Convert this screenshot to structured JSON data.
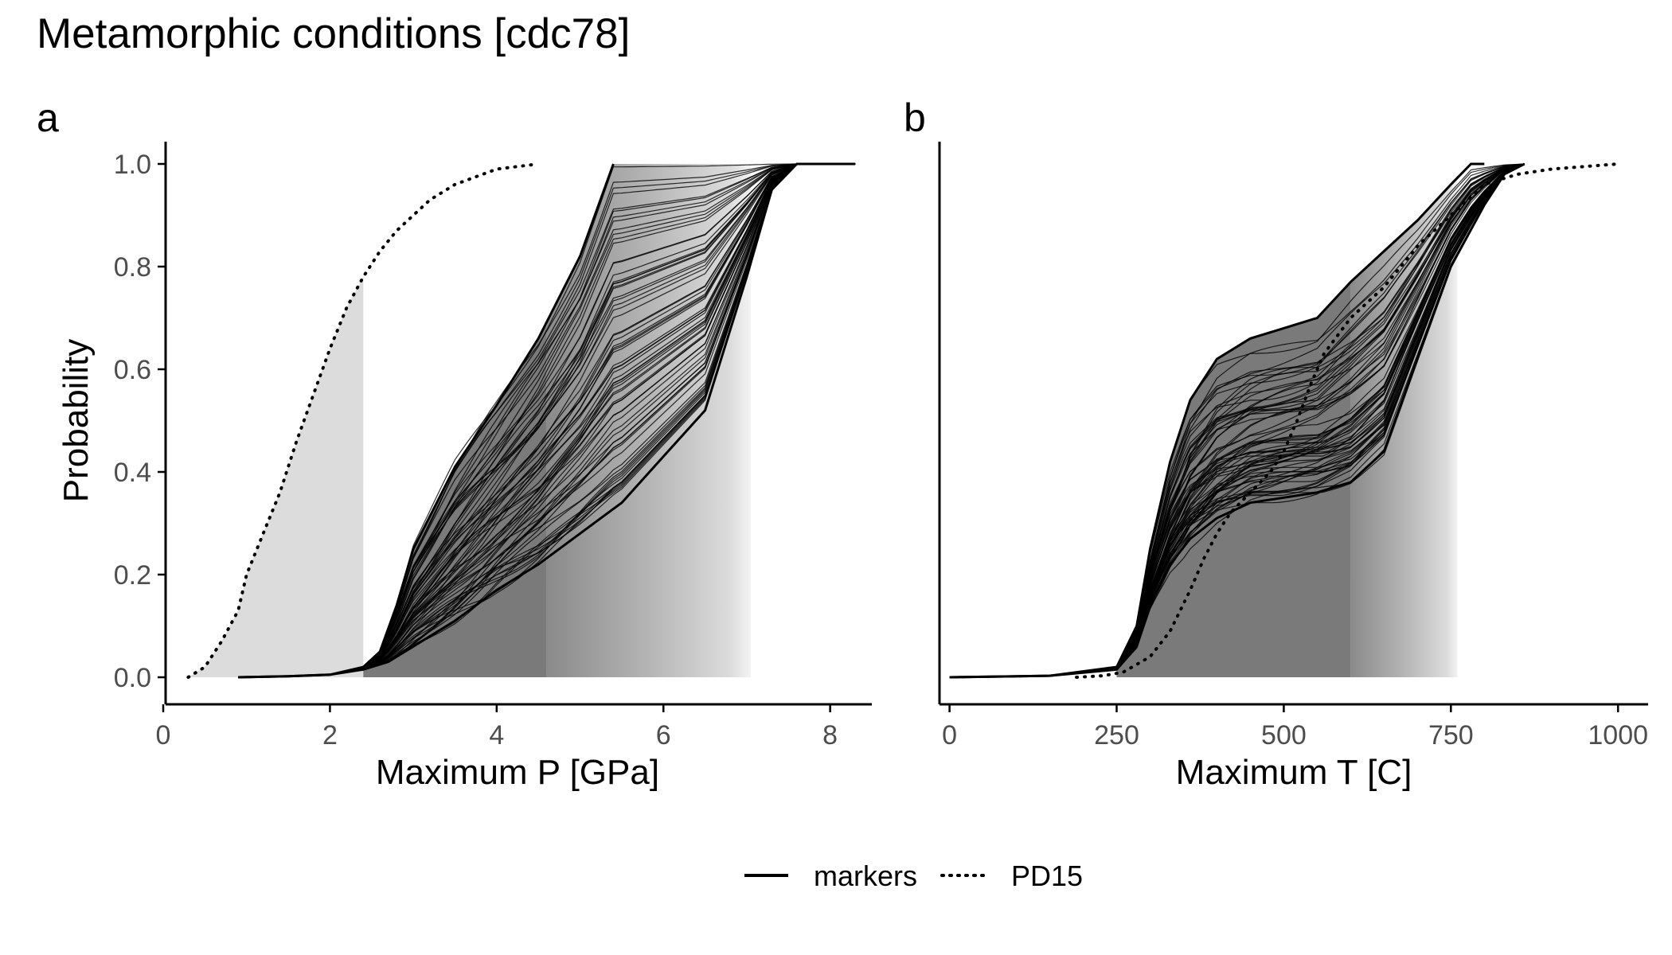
{
  "figure": {
    "title": "Metamorphic conditions [cdc78]"
  },
  "legend": {
    "position": "bottom",
    "entries": [
      {
        "label": "markers",
        "linetype": "solid"
      },
      {
        "label": "PD15",
        "linetype": "dotted"
      }
    ]
  },
  "colors": {
    "lines": "#000000",
    "shade_dark": "#7a7a7a",
    "shade_light": "#dcdcdc",
    "axis": "#000000",
    "tick_labels": "#4d4d4d"
  },
  "chart_data": [
    {
      "panel": "a",
      "type": "line",
      "title": "",
      "xlabel": "Maximum P [GPa]",
      "ylabel": "Probability",
      "xlim": [
        0,
        8.5
      ],
      "ylim": [
        0,
        1
      ],
      "xticks": [
        0,
        2,
        4,
        6,
        8
      ],
      "yticks": [
        0.0,
        0.2,
        0.4,
        0.6,
        0.8,
        1.0
      ],
      "ytick_labels": [
        "0.0",
        "0.2",
        "0.4",
        "0.6",
        "0.8",
        "1.0"
      ],
      "grid": false,
      "series": [
        {
          "name": "PD15",
          "linetype": "dotted",
          "x": [
            0.3,
            0.5,
            0.7,
            0.9,
            1.0,
            1.2,
            1.4,
            1.6,
            1.8,
            2.0,
            2.2,
            2.4,
            2.6,
            2.8,
            3.0,
            3.2,
            3.5,
            4.0,
            4.5
          ],
          "y": [
            0.0,
            0.02,
            0.07,
            0.13,
            0.2,
            0.28,
            0.36,
            0.46,
            0.55,
            0.64,
            0.72,
            0.78,
            0.83,
            0.87,
            0.9,
            0.93,
            0.96,
            0.99,
            1.0
          ]
        },
        {
          "name": "markers (envelope, left)",
          "linetype": "solid",
          "x": [
            0.9,
            1.5,
            2.0,
            2.4,
            2.6,
            2.8,
            3.0,
            3.5,
            4.0,
            4.5,
            5.0,
            5.4
          ],
          "y": [
            0.0,
            0.002,
            0.005,
            0.02,
            0.05,
            0.14,
            0.25,
            0.41,
            0.53,
            0.66,
            0.82,
            1.0
          ]
        },
        {
          "name": "markers (envelope, right)",
          "linetype": "solid",
          "x": [
            0.9,
            1.5,
            2.0,
            2.4,
            2.7,
            3.0,
            3.5,
            4.0,
            4.5,
            5.0,
            5.5,
            6.0,
            6.5,
            7.0,
            7.3,
            7.6,
            8.3
          ],
          "y": [
            0.0,
            0.002,
            0.005,
            0.015,
            0.03,
            0.06,
            0.11,
            0.17,
            0.22,
            0.28,
            0.34,
            0.43,
            0.52,
            0.78,
            0.95,
            1.0,
            1.0
          ]
        }
      ],
      "shading": [
        {
          "x_from": 0.3,
          "x_to": 2.4,
          "level": "light"
        },
        {
          "x_from": 2.4,
          "x_to": 4.6,
          "level": "dark"
        },
        {
          "x_from": 4.6,
          "x_to": 7.05,
          "level": "gradient"
        }
      ]
    },
    {
      "panel": "b",
      "type": "line",
      "title": "",
      "xlabel": "Maximum T [C]",
      "ylabel": "",
      "xlim": [
        -15,
        1045
      ],
      "ylim": [
        0,
        1
      ],
      "xticks": [
        0,
        250,
        500,
        750,
        1000
      ],
      "grid": false,
      "series": [
        {
          "name": "PD15",
          "linetype": "dotted",
          "x": [
            190,
            230,
            260,
            300,
            330,
            360,
            380,
            400,
            420,
            450,
            480,
            500,
            520,
            540,
            560,
            600,
            650,
            700,
            750,
            800,
            850,
            900,
            1000
          ],
          "y": [
            0.0,
            0.003,
            0.01,
            0.04,
            0.09,
            0.17,
            0.23,
            0.28,
            0.32,
            0.36,
            0.4,
            0.44,
            0.5,
            0.57,
            0.63,
            0.7,
            0.76,
            0.84,
            0.9,
            0.96,
            0.98,
            0.99,
            1.0
          ]
        },
        {
          "name": "markers (envelope, upper)",
          "linetype": "solid",
          "x": [
            0,
            150,
            250,
            280,
            300,
            330,
            360,
            400,
            450,
            500,
            550,
            600,
            650,
            700,
            750,
            780,
            800
          ],
          "y": [
            0.0,
            0.003,
            0.02,
            0.1,
            0.25,
            0.42,
            0.54,
            0.62,
            0.66,
            0.68,
            0.7,
            0.77,
            0.83,
            0.89,
            0.96,
            1.0,
            1.0
          ]
        },
        {
          "name": "markers (envelope, lower)",
          "linetype": "solid",
          "x": [
            0,
            150,
            250,
            280,
            300,
            330,
            360,
            400,
            450,
            500,
            550,
            600,
            650,
            700,
            750,
            800,
            830,
            860
          ],
          "y": [
            0.0,
            0.003,
            0.015,
            0.06,
            0.14,
            0.22,
            0.27,
            0.31,
            0.34,
            0.35,
            0.36,
            0.38,
            0.44,
            0.62,
            0.8,
            0.92,
            0.98,
            1.0
          ]
        }
      ],
      "shading": [
        {
          "x_from": 250,
          "x_to": 600,
          "level": "dark"
        },
        {
          "x_from": 600,
          "x_to": 760,
          "level": "gradient"
        }
      ]
    }
  ]
}
